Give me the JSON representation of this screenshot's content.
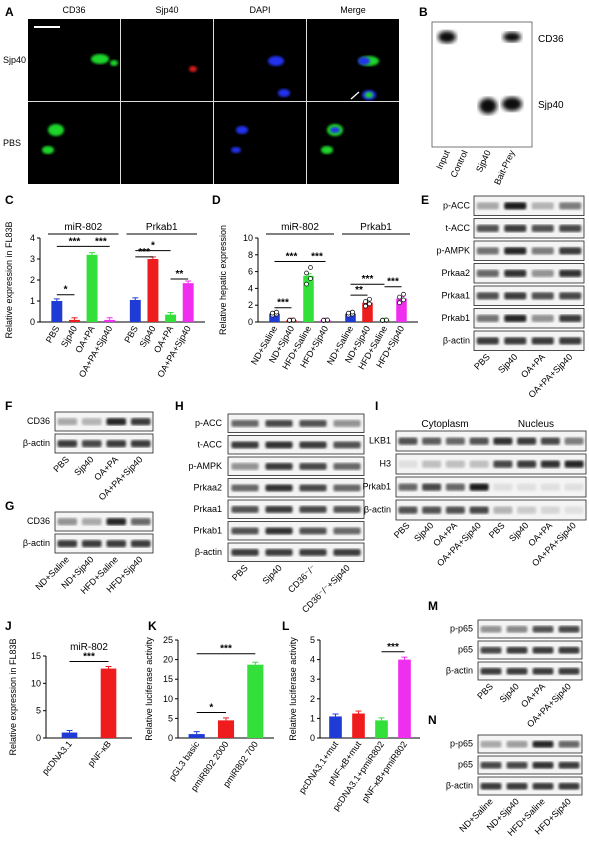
{
  "panel_letters": {
    "a": "A",
    "b": "B",
    "c": "C",
    "d": "D",
    "e": "E",
    "f": "F",
    "g": "G",
    "h": "H",
    "i": "I",
    "j": "J",
    "k": "K",
    "l": "L",
    "m": "M",
    "n": "N"
  },
  "panel_a": {
    "col_headers": [
      "CD36",
      "Sjp40",
      "DAPI",
      "Merge"
    ],
    "row_labels": [
      "Sjp40",
      "PBS"
    ]
  },
  "panel_b": {
    "lanes": [
      "Input",
      "Control",
      "Sjp40",
      "Bait-Prey"
    ],
    "band_labels": [
      "CD36",
      "Sjp40"
    ]
  },
  "panel_e": {
    "rows": [
      "p-ACC",
      "t-ACC",
      "p-AMPK",
      "Prkaa2",
      "Prkaa1",
      "Prkab1",
      "β-actin"
    ],
    "lanes": [
      "PBS",
      "Sjp40",
      "OA+PA",
      "OA+PA+Sjp40"
    ]
  },
  "panel_f": {
    "rows": [
      "CD36",
      "β-actin"
    ],
    "lanes": [
      "PBS",
      "Sjp40",
      "OA+PA",
      "OA+PA+Sjp40"
    ]
  },
  "panel_g": {
    "rows": [
      "CD36",
      "β-actin"
    ],
    "lanes": [
      "ND+Saline",
      "ND+Sjp40",
      "HFD+Saline",
      "HFD+Sjp40"
    ]
  },
  "panel_h": {
    "rows": [
      "p-ACC",
      "t-ACC",
      "p-AMPK",
      "Prkaa2",
      "Prkaa1",
      "Prkab1",
      "β-actin"
    ],
    "lanes": [
      "PBS",
      "Sjp40",
      "CD36⁻/⁻",
      "CD36⁻/⁻+Sjp40"
    ]
  },
  "panel_i": {
    "sections": [
      "Cytoplasm",
      "Nucleus"
    ],
    "rows": [
      "LKB1",
      "H3",
      "Prkab1",
      "β-actin"
    ],
    "lanes": [
      "PBS",
      "Sjp40",
      "OA+PA",
      "OA+PA+Sjp40",
      "PBS",
      "Sjp40",
      "OA+PA",
      "OA+PA+Sjp40"
    ]
  },
  "panel_m": {
    "rows": [
      "p-p65",
      "p65",
      "β-actin"
    ],
    "lanes": [
      "PBS",
      "Sjp40",
      "OA+PA",
      "OA+PA+Sjp40"
    ]
  },
  "panel_n": {
    "rows": [
      "p-p65",
      "p65",
      "β-actin"
    ],
    "lanes": [
      "ND+Saline",
      "ND+Sjp40",
      "HFD+Saline",
      "HFD+Sjp40"
    ]
  },
  "colors": {
    "blue": "#1f3bd6",
    "red": "#ee1c1c",
    "green": "#33e03a",
    "magenta": "#f02ef0"
  },
  "chart_data": [
    {
      "id": "C",
      "type": "bar",
      "ylabel": "Relative expression in FL83B",
      "ylim": [
        0,
        4
      ],
      "yticks": [
        0,
        1,
        2,
        3,
        4
      ],
      "groups": [
        "miR-802",
        "Prkab1"
      ],
      "categories": [
        "PBS",
        "Sjp40",
        "OA+PA",
        "OA+PA+Sjp40"
      ],
      "series": [
        {
          "values": [
            1.0,
            0.1,
            3.2,
            0.1
          ]
        },
        {
          "values": [
            1.05,
            3.0,
            0.35,
            1.85
          ]
        }
      ],
      "significance": [
        "*",
        "***",
        "***",
        "*",
        "***",
        "**"
      ]
    },
    {
      "id": "D",
      "type": "bar",
      "ylabel": "Relative  hepatic expression",
      "ylim": [
        0,
        10
      ],
      "yticks": [
        0,
        2,
        4,
        6,
        8,
        10
      ],
      "groups": [
        "miR-802",
        "Prkab1"
      ],
      "categories": [
        "ND+Saline",
        "ND+Sjp40",
        "HFD+Saline",
        "HFD+Sjp40"
      ],
      "series": [
        {
          "values": [
            1.0,
            0.2,
            5.5,
            0.2
          ]
        },
        {
          "values": [
            1.0,
            2.3,
            0.2,
            2.8
          ]
        }
      ],
      "significance": [
        "***",
        "***",
        "***",
        "**",
        "***",
        "***"
      ]
    },
    {
      "id": "J",
      "type": "bar",
      "title": "miR-802",
      "ylabel": "Relative expression in FL83B",
      "ylim": [
        0,
        15
      ],
      "yticks": [
        0,
        5,
        10,
        15
      ],
      "categories": [
        "pcDNA3.1",
        "pNF-κB"
      ],
      "values": [
        1.0,
        12.7
      ],
      "significance": [
        "***"
      ]
    },
    {
      "id": "K",
      "type": "bar",
      "ylabel": "Relative luciferase activity",
      "ylim": [
        0,
        25
      ],
      "yticks": [
        0,
        5,
        10,
        15,
        20,
        25
      ],
      "categories": [
        "pGL3 basic",
        "pmiR802 2000",
        "pmiR802 700"
      ],
      "values": [
        1.0,
        4.5,
        18.7
      ],
      "significance": [
        "*",
        "***"
      ]
    },
    {
      "id": "L",
      "type": "bar",
      "ylabel": "Relative luciferase activity",
      "ylim": [
        0,
        5
      ],
      "yticks": [
        0,
        1,
        2,
        3,
        4,
        5
      ],
      "categories": [
        "pcDNA3.1+mut",
        "pNF-κB+mut",
        "pcDNA3.1+pmiR802",
        "pNF-κB+pmiR802"
      ],
      "values": [
        1.1,
        1.25,
        0.9,
        4.0
      ],
      "significance": [
        "***"
      ]
    }
  ]
}
